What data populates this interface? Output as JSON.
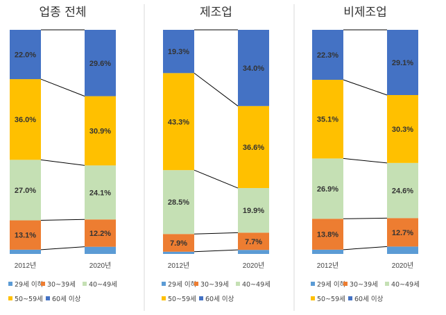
{
  "chart_data": [
    {
      "type": "bar",
      "stacked": true,
      "percent": true,
      "title": "업종 전체",
      "categories": [
        "2012년",
        "2020년"
      ],
      "series": [
        {
          "name": "29세 이하",
          "values": [
            1.9,
            3.2
          ],
          "color": "#5b9bd5"
        },
        {
          "name": "30~39세",
          "values": [
            13.1,
            12.2
          ],
          "color": "#ed7d31"
        },
        {
          "name": "40~49세",
          "values": [
            27.0,
            24.1
          ],
          "color": "#c5e0b4"
        },
        {
          "name": "50~59세",
          "values": [
            36.0,
            30.9
          ],
          "color": "#ffc000"
        },
        {
          "name": "60세 이상",
          "values": [
            22.0,
            29.6
          ],
          "color": "#4472c4"
        }
      ],
      "data_labels": [
        {
          "series": "30~39세",
          "labels": [
            "13.1%",
            "12.2%"
          ]
        },
        {
          "series": "40~49세",
          "labels": [
            "27.0%",
            "24.1%"
          ]
        },
        {
          "series": "50~59세",
          "labels": [
            "36.0%",
            "30.9%"
          ]
        },
        {
          "series": "60세 이상",
          "labels": [
            "22.0%",
            "29.6%"
          ]
        }
      ],
      "ylim": [
        0,
        100
      ],
      "legend": "bottom",
      "grid": false
    },
    {
      "type": "bar",
      "stacked": true,
      "percent": true,
      "title": "제조업",
      "categories": [
        "2012년",
        "2020년"
      ],
      "series": [
        {
          "name": "29세 이하",
          "values": [
            1.0,
            1.8
          ],
          "color": "#5b9bd5"
        },
        {
          "name": "30~39세",
          "values": [
            7.9,
            7.7
          ],
          "color": "#ed7d31"
        },
        {
          "name": "40~49세",
          "values": [
            28.5,
            19.9
          ],
          "color": "#c5e0b4"
        },
        {
          "name": "50~59세",
          "values": [
            43.3,
            36.6
          ],
          "color": "#ffc000"
        },
        {
          "name": "60세 이상",
          "values": [
            19.3,
            34.0
          ],
          "color": "#4472c4"
        }
      ],
      "data_labels": [
        {
          "series": "30~39세",
          "labels": [
            "7.9%",
            "7.7%"
          ]
        },
        {
          "series": "40~49세",
          "labels": [
            "28.5%",
            "19.9%"
          ]
        },
        {
          "series": "50~59세",
          "labels": [
            "43.3%",
            "36.6%"
          ]
        },
        {
          "series": "60세 이상",
          "labels": [
            "19.3%",
            "34.0%"
          ]
        }
      ],
      "ylim": [
        0,
        100
      ],
      "legend": "bottom",
      "grid": false
    },
    {
      "type": "bar",
      "stacked": true,
      "percent": true,
      "title": "비제조업",
      "categories": [
        "2012년",
        "2020년"
      ],
      "series": [
        {
          "name": "29세 이하",
          "values": [
            1.9,
            3.3
          ],
          "color": "#5b9bd5"
        },
        {
          "name": "30~39세",
          "values": [
            13.8,
            12.7
          ],
          "color": "#ed7d31"
        },
        {
          "name": "40~49세",
          "values": [
            26.9,
            24.6
          ],
          "color": "#c5e0b4"
        },
        {
          "name": "50~59세",
          "values": [
            35.1,
            30.3
          ],
          "color": "#ffc000"
        },
        {
          "name": "60세 이상",
          "values": [
            22.3,
            29.1
          ],
          "color": "#4472c4"
        }
      ],
      "data_labels": [
        {
          "series": "30~39세",
          "labels": [
            "13.8%",
            "12.7%"
          ]
        },
        {
          "series": "40~49세",
          "labels": [
            "26.9%",
            "24.6%"
          ]
        },
        {
          "series": "50~59세",
          "labels": [
            "35.1%",
            "30.3%"
          ]
        },
        {
          "series": "60세 이상",
          "labels": [
            "22.3%",
            "29.1%"
          ]
        }
      ],
      "ylim": [
        0,
        100
      ],
      "legend": "bottom",
      "grid": false
    }
  ]
}
